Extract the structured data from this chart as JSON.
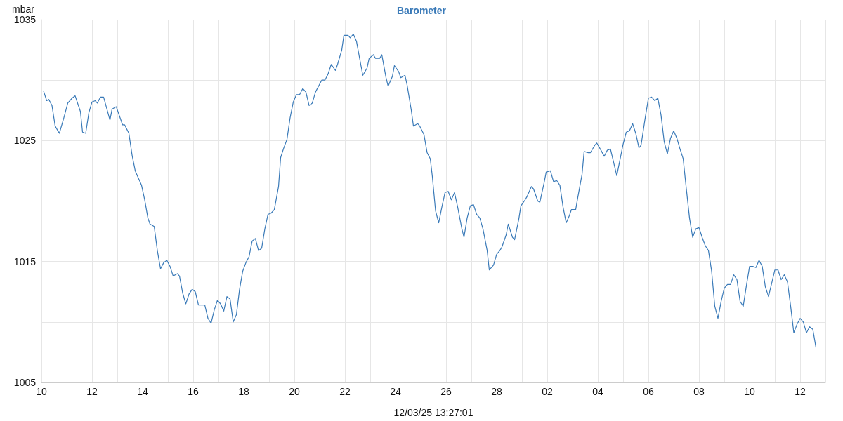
{
  "chart_data": {
    "type": "line",
    "title": "Barometer",
    "xlabel": "12/03/25 13:27:01",
    "ylabel": "mbar",
    "x": [
      "--02-10T02:00",
      "--02-10T05:00",
      "--02-10T07:00",
      "--02-10T10:00",
      "--02-10T13:00",
      "--02-10T17:00",
      "--02-10T21:00",
      "--02-11T01:00",
      "--02-11T05:00",
      "--02-11T08:00",
      "--02-11T13:00",
      "--02-11T15:00",
      "--02-11T18:00",
      "--02-11T21:00",
      "--02-12T00:00",
      "--02-12T03:00",
      "--02-12T05:00",
      "--02-12T08:00",
      "--02-12T11:00",
      "--02-12T17:00",
      "--02-12T19:00",
      "--02-12T23:00",
      "--02-13T05:00",
      "--02-13T07:00",
      "--02-13T11:00",
      "--02-13T14:00",
      "--02-13T17:00",
      "--02-13T23:00",
      "--02-14T02:00",
      "--02-14T05:00",
      "--02-14T07:00",
      "--02-14T11:00",
      "--02-14T14:00",
      "--02-14T17:00",
      "--02-14T20:00",
      "--02-14T23:00",
      "--02-15T02:00",
      "--02-15T05:00",
      "--02-15T09:00",
      "--02-15T11:00",
      "--02-15T14:00",
      "--02-15T17:00",
      "--02-15T20:00",
      "--02-15T23:00",
      "--02-16T02:00",
      "--02-16T05:00",
      "--02-16T11:00",
      "--02-16T14:00",
      "--02-16T17:00",
      "--02-16T20:00",
      "--02-16T23:00",
      "--02-17T02:00",
      "--02-17T05:00",
      "--02-17T08:00",
      "--02-17T11:00",
      "--02-17T14:00",
      "--02-17T17:00",
      "--02-17T20:00",
      "--02-17T23:00",
      "--02-18T02:00",
      "--02-18T05:00",
      "--02-18T08:00",
      "--02-18T11:00",
      "--02-18T14:00",
      "--02-18T17:00",
      "--02-18T20:00",
      "--02-18T23:00",
      "--02-19T02:00",
      "--02-19T05:00",
      "--02-19T09:00",
      "--02-19T11:00",
      "--02-19T14:00",
      "--02-19T17:00",
      "--02-19T20:00",
      "--02-19T23:00",
      "--02-20T02:00",
      "--02-20T05:00",
      "--02-20T08:00",
      "--02-20T11:00",
      "--02-20T14:00",
      "--02-20T17:00",
      "--02-20T20:00",
      "--02-20T23:00",
      "--02-21T02:00",
      "--02-21T05:00",
      "--02-21T08:00",
      "--02-21T11:00",
      "--02-21T15:00",
      "--02-21T17:00",
      "--02-21T21:00",
      "--02-21T23:00",
      "--02-22T03:00",
      "--02-22T05:00",
      "--02-22T08:00",
      "--02-22T11:00",
      "--02-22T15:00",
      "--02-22T17:00",
      "--02-22T21:00",
      "--02-22T23:00",
      "--02-23T03:00",
      "--02-23T05:00",
      "--02-23T09:00",
      "--02-23T11:00",
      "--02-23T15:00",
      "--02-23T17:00",
      "--02-23T21:00",
      "--02-23T23:00",
      "--02-24T03:00",
      "--02-24T05:00",
      "--02-24T09:00",
      "--02-24T11:00",
      "--02-24T15:00",
      "--02-24T17:00",
      "--02-24T21:00",
      "--02-24T23:00",
      "--02-25T03:00",
      "--02-25T06:00",
      "--02-25T09:00",
      "--02-25T11:00",
      "--02-25T14:00",
      "--02-25T17:00",
      "--02-25T20:00",
      "--02-25T23:00",
      "--02-26T02:00",
      "--02-26T05:00",
      "--02-26T08:00",
      "--02-26T11:00",
      "--02-26T15:00",
      "--02-26T17:00",
      "--02-26T20:00",
      "--02-26T23:00",
      "--02-27T02:00",
      "--02-27T05:00",
      "--02-27T08:00",
      "--02-27T11:00",
      "--02-27T15:00",
      "--02-27T17:00",
      "--02-27T21:00",
      "--02-28T00:00",
      "--02-28T03:00",
      "--02-28T05:00",
      "--02-28T09:00",
      "--02-28T11:00",
      "--02-28T15:00",
      "--02-28T17:00",
      "--02-28T21:00",
      "--02-28T23:00",
      "--03-01T03:00",
      "--03-01T05:00",
      "--03-01T09:00",
      "--03-01T11:00",
      "--03-01T15:00",
      "--03-01T17:00",
      "--03-01T21:00",
      "--03-01T23:00",
      "--03-02T03:00",
      "--03-02T06:00",
      "--03-02T09:00",
      "--03-02T12:00",
      "--03-02T15:00",
      "--03-02T18:00",
      "--03-02T21:00",
      "--03-02T23:00",
      "--03-03T03:00",
      "--03-03T05:00",
      "--03-03T09:00",
      "--03-03T11:00",
      "--03-03T15:00",
      "--03-03T17:00",
      "--03-03T21:00",
      "--03-03T23:00",
      "--03-04T03:00",
      "--03-04T06:00",
      "--03-04T09:00",
      "--03-04T12:00",
      "--03-04T15:00",
      "--03-04T18:00",
      "--03-04T21:00",
      "--03-05T00:00",
      "--03-05T03:00",
      "--03-05T06:00",
      "--03-05T09:00",
      "--03-05T12:00",
      "--03-05T15:00",
      "--03-05T17:00",
      "--03-05T21:00",
      "--03-06T00:00",
      "--03-06T03:00",
      "--03-06T06:00",
      "--03-06T09:00",
      "--03-06T12:00",
      "--03-06T15:00",
      "--03-06T18:00",
      "--03-06T21:00",
      "--03-07T00:00",
      "--03-07T03:00",
      "--03-07T06:00",
      "--03-07T09:00",
      "--03-07T12:00",
      "--03-07T15:00",
      "--03-07T18:00",
      "--03-07T21:00",
      "--03-08T00:00",
      "--03-08T03:00",
      "--03-08T06:00",
      "--03-08T09:00",
      "--03-08T12:00",
      "--03-08T15:00",
      "--03-08T18:00",
      "--03-08T21:00",
      "--03-09T00:00",
      "--03-09T03:00",
      "--03-09T06:00",
      "--03-09T09:00",
      "--03-09T12:00",
      "--03-09T15:00",
      "--03-09T18:00",
      "--03-09T21:00",
      "--03-10T00:00",
      "--03-10T03:00",
      "--03-10T06:00",
      "--03-10T09:00",
      "--03-10T12:00",
      "--03-10T15:00",
      "--03-10T18:00",
      "--03-10T21:00",
      "--03-11T00:00",
      "--03-11T03:00",
      "--03-11T06:00",
      "--03-11T09:00",
      "--03-11T12:00",
      "--03-11T15:00",
      "--03-11T18:00",
      "--03-11T21:00",
      "--03-12T00:00",
      "--03-12T03:00",
      "--03-12T06:00",
      "--03-12T09:00",
      "--03-12T12:00",
      "--03-12T15:00"
    ],
    "series": [
      {
        "color": "#3a7ab8",
        "values": [
          1029.1,
          1028.3,
          1028.4,
          1027.9,
          1026.2,
          1025.6,
          1026.8,
          1028.1,
          1028.5,
          1028.7,
          1027.4,
          1025.7,
          1025.6,
          1027.3,
          1028.2,
          1028.3,
          1028.1,
          1028.6,
          1028.6,
          1026.7,
          1027.6,
          1027.8,
          1026.3,
          1026.3,
          1025.6,
          1023.8,
          1022.5,
          1021.3,
          1020.1,
          1018.6,
          1018.1,
          1017.9,
          1015.9,
          1014.4,
          1014.9,
          1015.1,
          1014.6,
          1013.8,
          1014.0,
          1013.8,
          1012.4,
          1011.5,
          1012.3,
          1012.7,
          1012.5,
          1011.4,
          1011.4,
          1010.3,
          1009.9,
          1011.0,
          1011.8,
          1011.5,
          1010.9,
          1012.1,
          1011.9,
          1010.0,
          1010.6,
          1012.7,
          1014.2,
          1014.9,
          1015.4,
          1016.7,
          1016.9,
          1015.9,
          1016.1,
          1017.7,
          1018.9,
          1019.0,
          1019.3,
          1021.2,
          1023.6,
          1024.4,
          1025.1,
          1026.9,
          1028.2,
          1028.8,
          1028.8,
          1029.3,
          1029.0,
          1027.9,
          1028.1,
          1029.0,
          1029.5,
          1030.0,
          1030.0,
          1030.5,
          1031.3,
          1030.8,
          1031.3,
          1032.5,
          1033.7,
          1033.7,
          1033.5,
          1033.8,
          1033.2,
          1031.3,
          1030.4,
          1031.0,
          1031.8,
          1032.1,
          1031.8,
          1031.8,
          1032.1,
          1030.2,
          1029.5,
          1030.3,
          1031.2,
          1030.7,
          1030.2,
          1030.4,
          1029.6,
          1027.5,
          1026.2,
          1026.4,
          1026.2,
          1025.5,
          1024.0,
          1023.5,
          1022.0,
          1019.2,
          1018.2,
          1019.5,
          1020.7,
          1020.8,
          1020.1,
          1020.7,
          1019.5,
          1017.7,
          1017.0,
          1018.6,
          1019.6,
          1019.7,
          1018.9,
          1018.6,
          1017.7,
          1015.9,
          1014.3,
          1014.7,
          1015.6,
          1015.9,
          1016.2,
          1017.2,
          1018.1,
          1017.0,
          1016.8,
          1018.5,
          1019.6,
          1020.1,
          1020.4,
          1021.2,
          1021.0,
          1020.0,
          1019.9,
          1021.5,
          1022.4,
          1022.5,
          1021.6,
          1021.7,
          1021.3,
          1019.5,
          1018.2,
          1018.8,
          1019.3,
          1019.3,
          1020.3,
          1022.2,
          1024.1,
          1024.0,
          1024.0,
          1024.6,
          1024.8,
          1024.2,
          1023.7,
          1024.2,
          1024.3,
          1023.2,
          1022.1,
          1023.4,
          1024.7,
          1025.7,
          1025.8,
          1026.4,
          1025.6,
          1024.4,
          1024.6,
          1026.9,
          1028.5,
          1028.6,
          1028.3,
          1028.5,
          1027.1,
          1024.9,
          1023.9,
          1025.2,
          1025.8,
          1025.2,
          1024.3,
          1023.5,
          1021.0,
          1018.6,
          1017.0,
          1017.7,
          1017.8,
          1017.0,
          1016.3,
          1015.9,
          1014.2,
          1011.3,
          1010.3,
          1011.7,
          1012.8,
          1013.1,
          1013.1,
          1013.9,
          1013.5,
          1011.7,
          1011.3,
          1013.0,
          1014.6,
          1014.6,
          1014.5,
          1015.1,
          1014.6,
          1012.9,
          1012.1,
          1013.2,
          1014.3,
          1014.3,
          1013.5,
          1013.9,
          1013.3,
          1011.3,
          1009.1,
          1009.8,
          1010.3,
          1010.0,
          1009.1,
          1009.6,
          1009.4,
          1007.9
        ]
      }
    ],
    "xlim": [
      "--02-10",
      "--03-13"
    ],
    "xticks": [
      {
        "value": "--02-10",
        "label": "10"
      },
      {
        "value": "--02-11",
        "label": null
      },
      {
        "value": "--02-12",
        "label": "12"
      },
      {
        "value": "--02-13",
        "label": null
      },
      {
        "value": "--02-14",
        "label": "14"
      },
      {
        "value": "--02-15",
        "label": null
      },
      {
        "value": "--02-16",
        "label": "16"
      },
      {
        "value": "--02-17",
        "label": null
      },
      {
        "value": "--02-18",
        "label": "18"
      },
      {
        "value": "--02-19",
        "label": null
      },
      {
        "value": "--02-20",
        "label": "20"
      },
      {
        "value": "--02-21",
        "label": null
      },
      {
        "value": "--02-22",
        "label": "22"
      },
      {
        "value": "--02-23",
        "label": null
      },
      {
        "value": "--02-24",
        "label": "24"
      },
      {
        "value": "--02-25",
        "label": null
      },
      {
        "value": "--02-26",
        "label": "26"
      },
      {
        "value": "--02-27",
        "label": null
      },
      {
        "value": "--02-28",
        "label": "28"
      },
      {
        "value": "--03-01",
        "label": null
      },
      {
        "value": "--03-02",
        "label": "02"
      },
      {
        "value": "--03-03",
        "label": null
      },
      {
        "value": "--03-04",
        "label": "04"
      },
      {
        "value": "--03-05",
        "label": null
      },
      {
        "value": "--03-06",
        "label": "06"
      },
      {
        "value": "--03-07",
        "label": null
      },
      {
        "value": "--03-08",
        "label": "08"
      },
      {
        "value": "--03-09",
        "label": null
      },
      {
        "value": "--03-10",
        "label": "10"
      },
      {
        "value": "--03-11",
        "label": null
      },
      {
        "value": "--03-12",
        "label": "12"
      },
      {
        "value": "--03-13",
        "label": null
      }
    ],
    "ylim": [
      1005,
      1035
    ],
    "yticks": [
      1005,
      {
        "value": 1010,
        "label": null
      },
      1015,
      {
        "value": 1020,
        "label": null
      },
      1025,
      {
        "value": 1030,
        "label": null
      },
      1035
    ],
    "grid": true,
    "marker": "none",
    "line_style": "solid"
  }
}
